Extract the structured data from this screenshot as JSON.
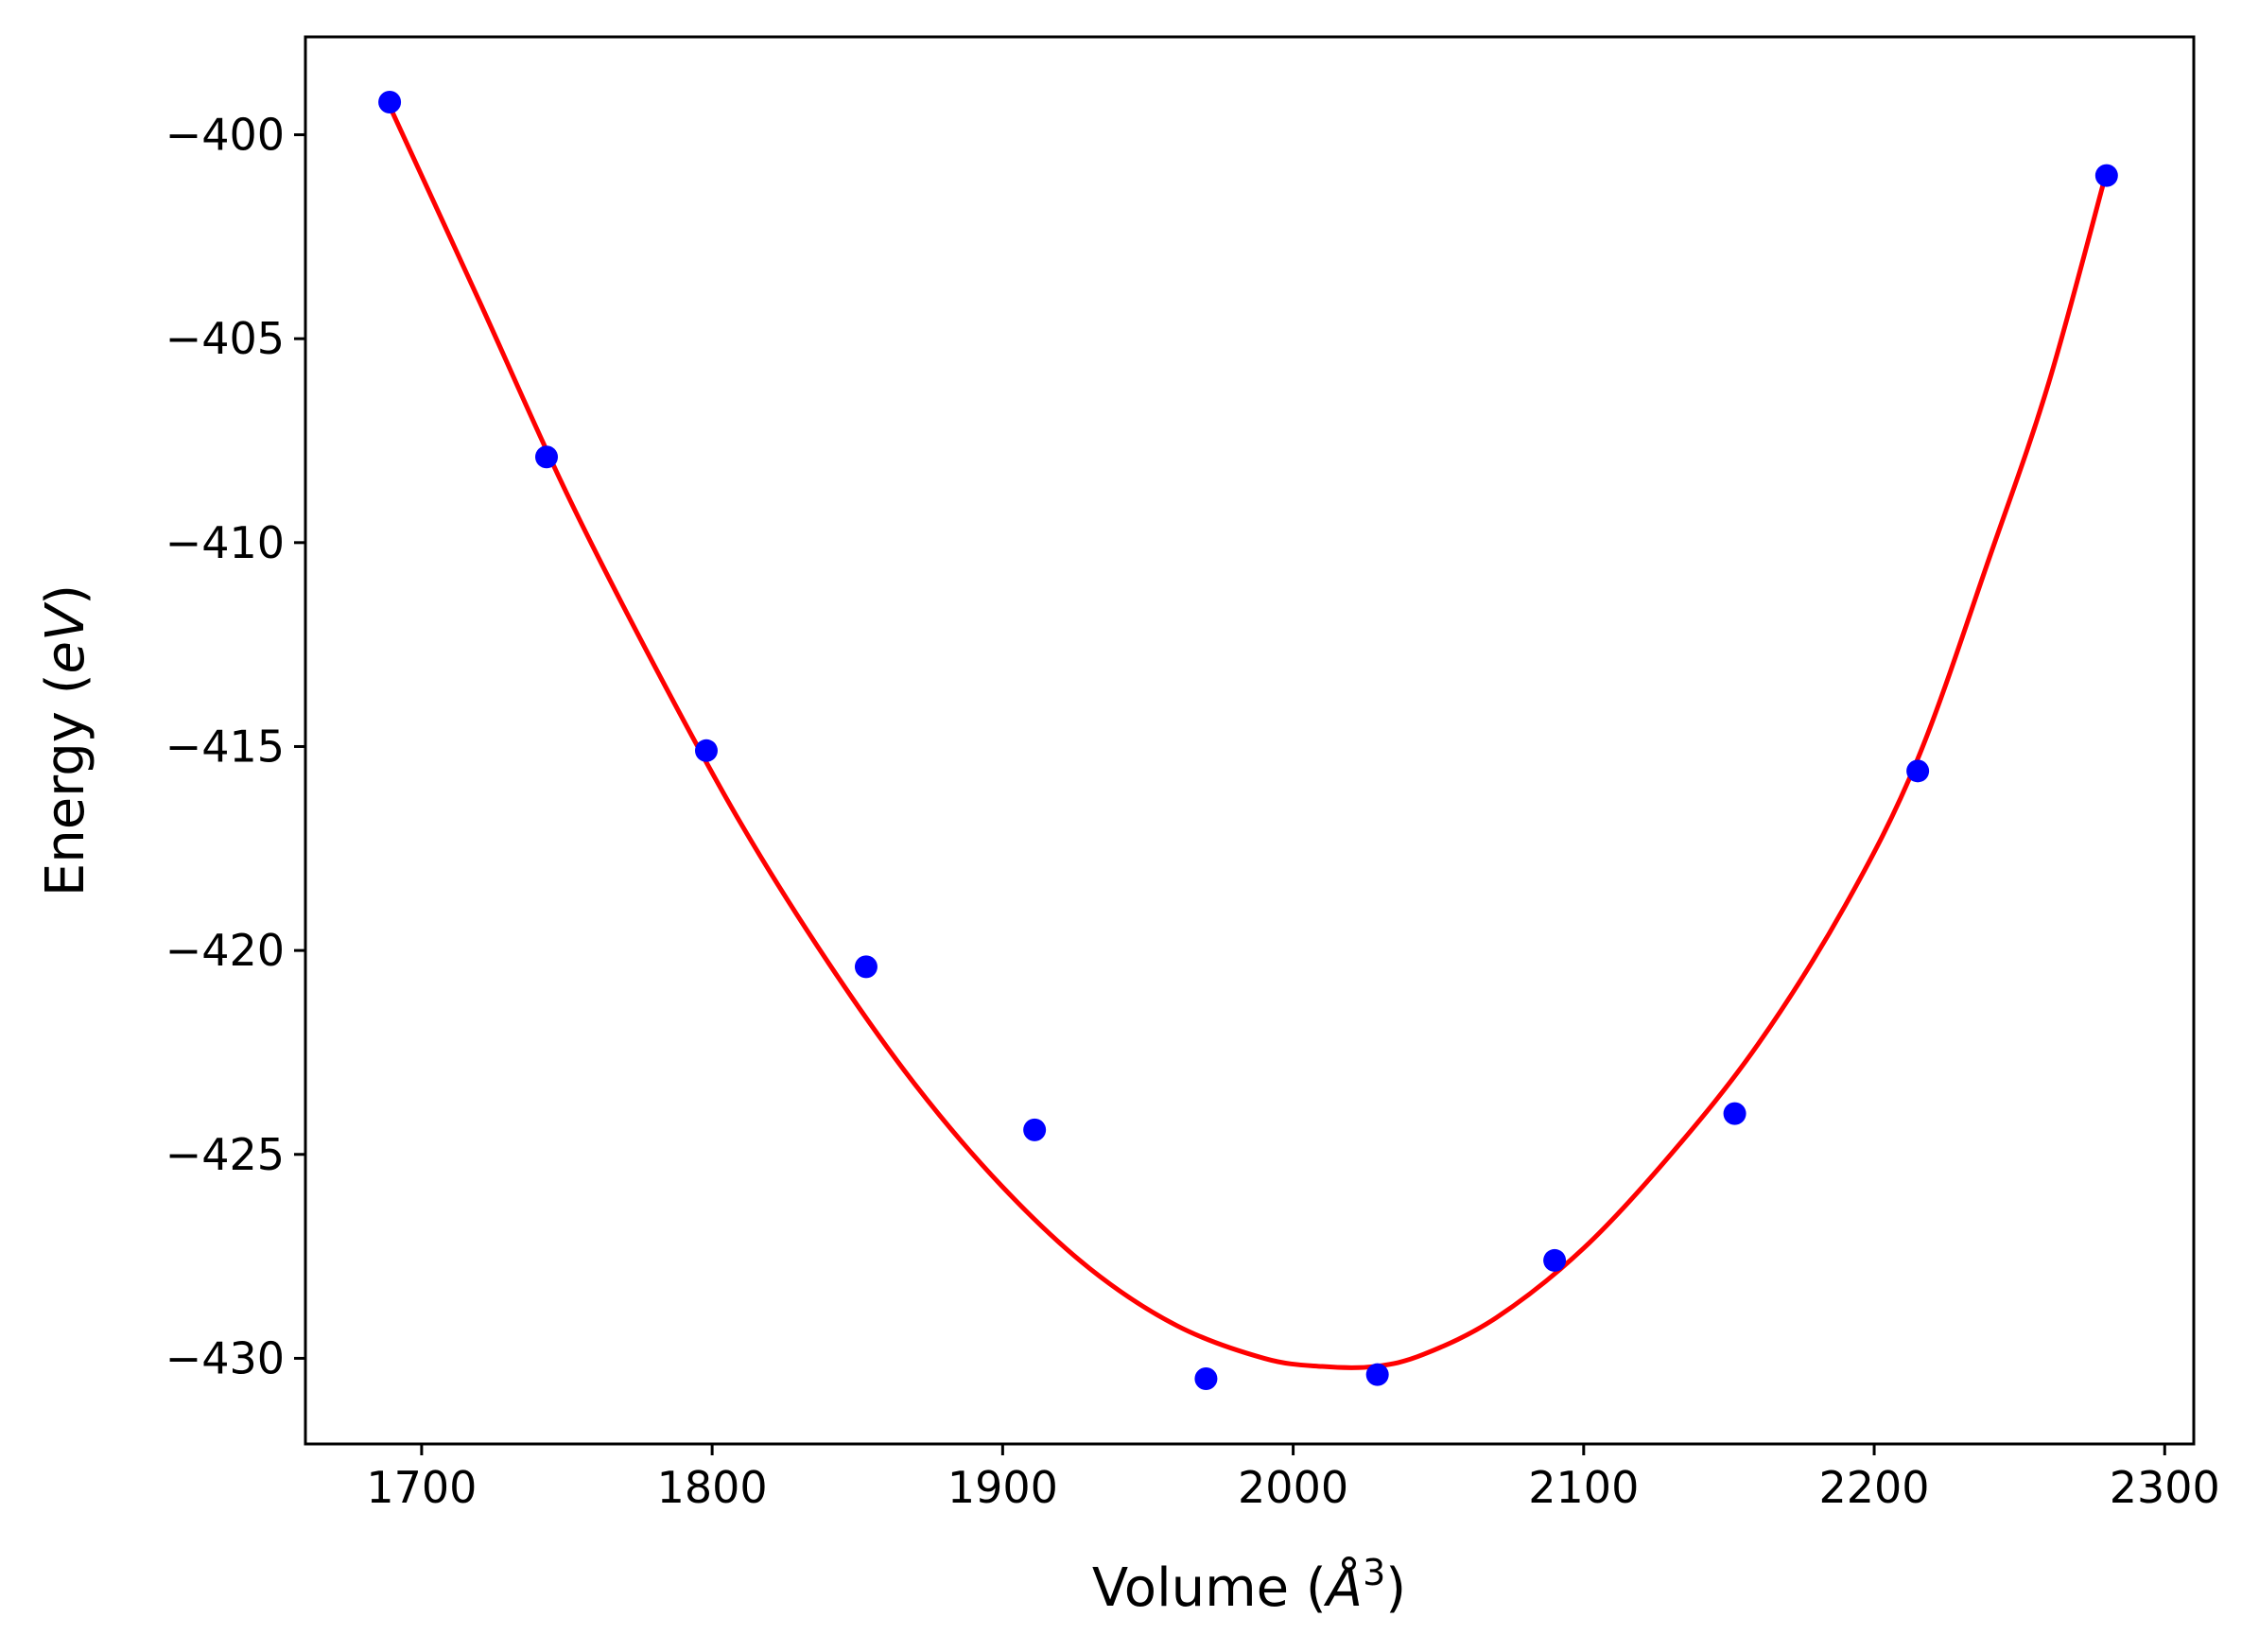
{
  "chart_data": {
    "type": "scatter",
    "xlabel_prefix": "Volume (",
    "xlabel_unit": "Å",
    "xlabel_exp": "3",
    "xlabel_suffix": ")",
    "ylabel_prefix": "Energy (",
    "ylabel_unit": "eV",
    "ylabel_suffix": ")",
    "xlim": [
      1660,
      2310
    ],
    "ylim": [
      -432.1,
      -397.6
    ],
    "xticks": [
      1700,
      1800,
      1900,
      2000,
      2100,
      2200,
      2300
    ],
    "yticks": [
      -400,
      -405,
      -410,
      -415,
      -420,
      -425,
      -430
    ],
    "grid": false,
    "legend": "none",
    "series": [
      {
        "kind": "points",
        "color": "#0000ff",
        "x": [
          1689,
          1743,
          1798,
          1853,
          1911,
          1970,
          2029,
          2090,
          2152,
          2215,
          2280
        ],
        "y": [
          -399.2,
          -407.9,
          -415.1,
          -420.4,
          -424.4,
          -430.5,
          -430.4,
          -427.6,
          -424.0,
          -415.6,
          -401.0
        ]
      },
      {
        "kind": "fit",
        "color": "#ff0000",
        "x": [
          1689,
          1720,
          1750,
          1780,
          1810,
          1840,
          1870,
          1900,
          1930,
          1960,
          1990,
          2010,
          2028,
          2045,
          2070,
          2100,
          2130,
          2160,
          2190,
          2215,
          2240,
          2260,
          2280
        ],
        "y": [
          -399.3,
          -404.1,
          -408.8,
          -413.0,
          -416.9,
          -420.3,
          -423.3,
          -425.8,
          -427.8,
          -429.2,
          -430.0,
          -430.2,
          -430.2,
          -429.9,
          -429.0,
          -427.3,
          -425.0,
          -422.3,
          -418.9,
          -415.3,
          -410.3,
          -406.1,
          -400.9
        ]
      }
    ]
  }
}
